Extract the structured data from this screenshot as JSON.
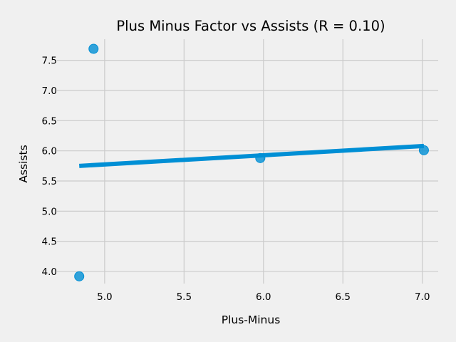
{
  "chart_data": {
    "type": "scatter",
    "title": "Plus Minus Factor vs Assists (R = 0.10)",
    "xlabel": "Plus-Minus",
    "ylabel": "Assists",
    "xlim": [
      4.7,
      7.1
    ],
    "ylim": [
      3.8,
      7.85
    ],
    "xticks": [
      5.0,
      5.5,
      6.0,
      6.5,
      7.0
    ],
    "xtick_labels": [
      "5.0",
      "5.5",
      "6.0",
      "6.5",
      "7.0"
    ],
    "yticks": [
      4.0,
      4.5,
      5.0,
      5.5,
      6.0,
      6.5,
      7.0,
      7.5
    ],
    "ytick_labels": [
      "4.0",
      "4.5",
      "5.0",
      "5.5",
      "6.0",
      "6.5",
      "7.0",
      "7.5"
    ],
    "grid": true,
    "series": [
      {
        "type": "scatter",
        "x": [
          4.84,
          4.93,
          5.98,
          7.01
        ],
        "y": [
          3.92,
          7.69,
          5.88,
          6.01
        ],
        "color": "#008fd5"
      }
    ],
    "fit_line": {
      "x": [
        4.84,
        7.01
      ],
      "y": [
        5.75,
        6.08
      ],
      "color": "#008fd5"
    }
  }
}
